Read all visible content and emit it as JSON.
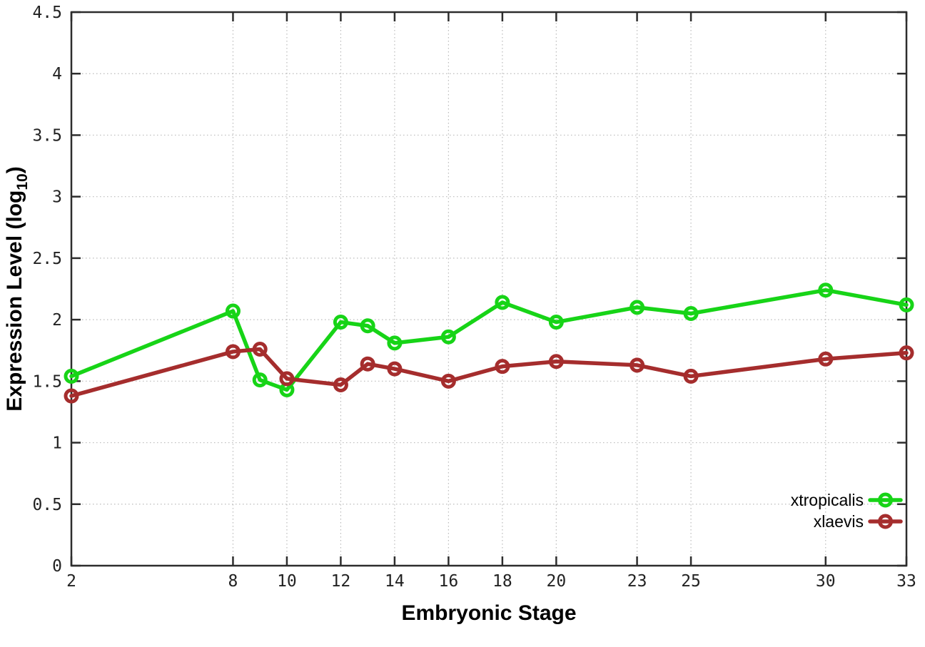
{
  "chart_data": {
    "type": "line",
    "title": "",
    "xlabel": "Embryonic Stage",
    "ylabel": "Expression Level (log10)",
    "ylabel_parts": {
      "pre": "Expression Level (log",
      "sub": "10",
      "post": ")"
    },
    "x": [
      2,
      8,
      9,
      10,
      12,
      13,
      14,
      16,
      18,
      20,
      23,
      25,
      30,
      33
    ],
    "series": [
      {
        "name": "xtropicalis",
        "color": "#17d417",
        "values": [
          1.54,
          2.07,
          1.51,
          1.43,
          1.98,
          1.95,
          1.81,
          1.86,
          2.14,
          1.98,
          2.1,
          2.05,
          2.24,
          2.12
        ]
      },
      {
        "name": "xlaevis",
        "color": "#a52d2d",
        "values": [
          1.38,
          1.74,
          1.76,
          1.52,
          1.47,
          1.64,
          1.6,
          1.5,
          1.62,
          1.66,
          1.63,
          1.54,
          1.68,
          1.73
        ]
      }
    ],
    "xlim": [
      2,
      33
    ],
    "ylim": [
      0,
      4.5
    ],
    "x_ticks": [
      2,
      8,
      10,
      12,
      14,
      16,
      18,
      20,
      23,
      25,
      30,
      33
    ],
    "y_ticks": [
      0,
      0.5,
      1,
      1.5,
      2,
      2.5,
      3,
      3.5,
      4,
      4.5
    ],
    "y_tick_labels": [
      "0",
      "0.5",
      "1",
      "1.5",
      "2",
      "2.5",
      "3",
      "3.5",
      "4",
      "4.5"
    ],
    "grid": true,
    "marker": "open-circle",
    "legend": {
      "position": "inside-right",
      "entries": [
        "xtropicalis",
        "xlaevis"
      ]
    },
    "colors": {
      "background": "#ffffff",
      "grid": "#bbbbbb",
      "axis": "#2d2d2d",
      "tick_label": "#222222",
      "title_text": "#000000"
    }
  }
}
